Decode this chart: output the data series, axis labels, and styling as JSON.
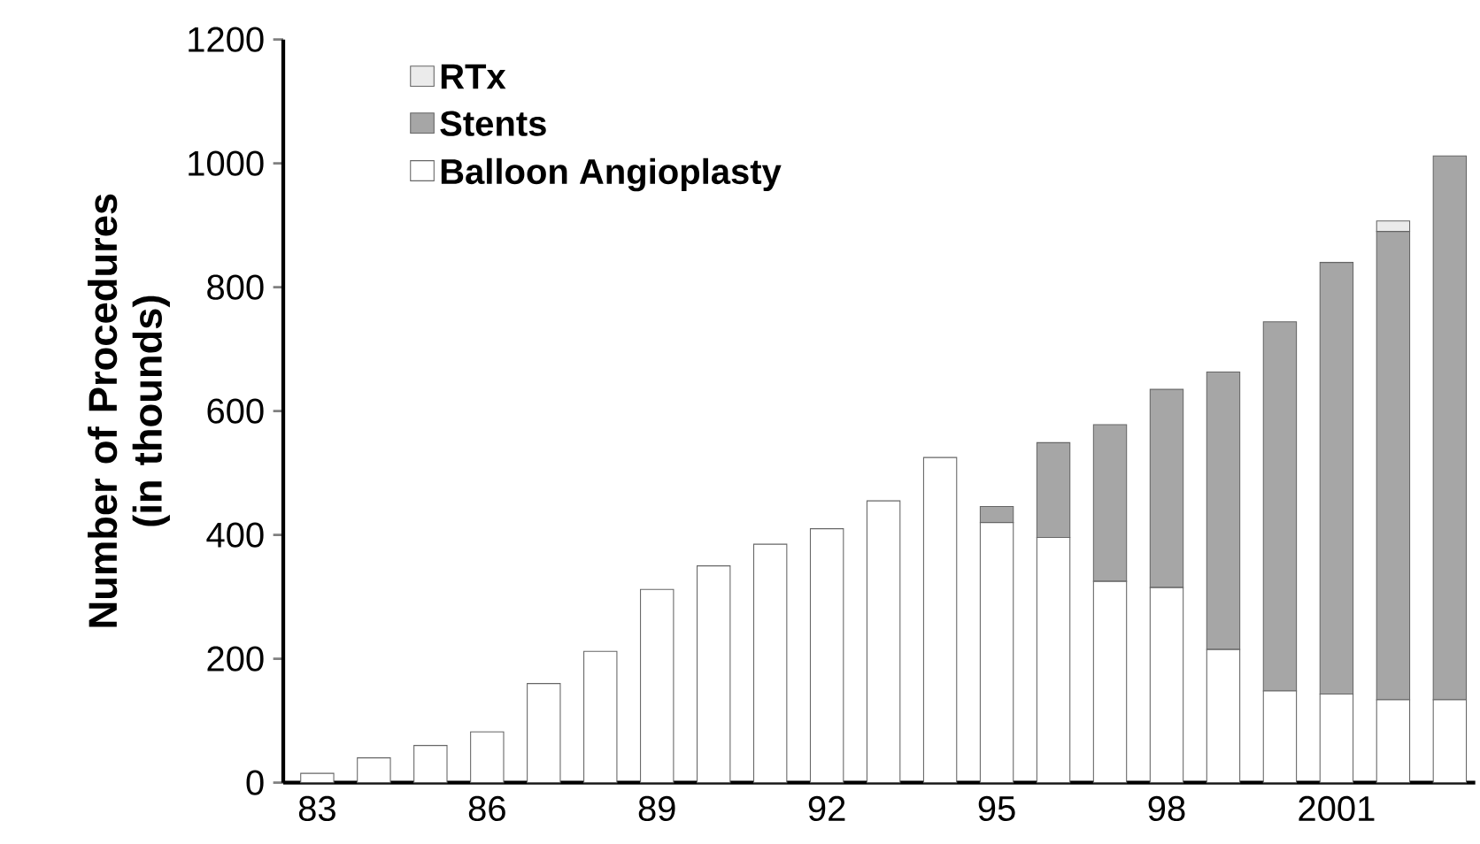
{
  "chart_data": {
    "type": "bar",
    "stacked": true,
    "ylabel": "Number of Procedures (in thounds)",
    "categories": [
      "83",
      null,
      null,
      "86",
      null,
      null,
      "89",
      null,
      null,
      "92",
      null,
      null,
      "95",
      null,
      null,
      "98",
      null,
      null,
      "2001",
      null,
      null
    ],
    "series": [
      {
        "name": "Balloon Angioplasty",
        "color": "#ffffff",
        "values": [
          15,
          40,
          60,
          82,
          160,
          212,
          312,
          350,
          385,
          410,
          455,
          525,
          420,
          396,
          325,
          315,
          215,
          148,
          143,
          134,
          134
        ]
      },
      {
        "name": "Stents",
        "color": "#a6a6a6",
        "values": [
          0,
          0,
          0,
          0,
          0,
          0,
          0,
          0,
          0,
          0,
          0,
          0,
          26,
          153,
          253,
          320,
          448,
          596,
          697,
          756,
          878
        ]
      },
      {
        "name": "RTx",
        "color": "#ebebeb",
        "values": [
          0,
          0,
          0,
          0,
          0,
          0,
          0,
          0,
          0,
          0,
          0,
          0,
          0,
          0,
          0,
          0,
          0,
          0,
          0,
          17,
          0
        ]
      }
    ],
    "ylim": [
      0,
      1200
    ],
    "yticks": [
      0,
      200,
      400,
      600,
      800,
      1000,
      1200
    ],
    "legend": "top left",
    "grid": false
  }
}
